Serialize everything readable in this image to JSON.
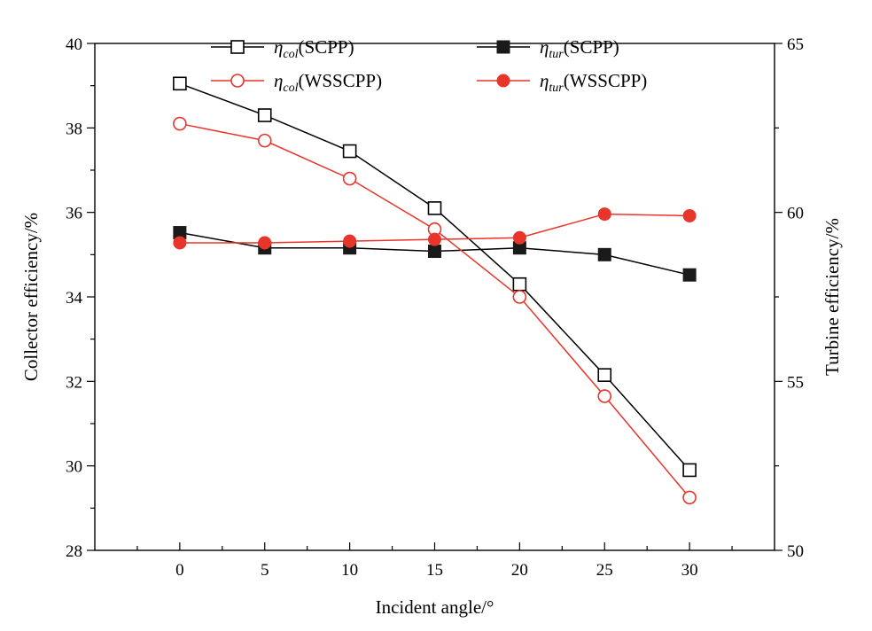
{
  "chart_data": {
    "type": "line",
    "x": [
      0,
      5,
      10,
      15,
      20,
      25,
      30
    ],
    "xlabel": "Incident angle/°",
    "ylabel_left": "Collector efficiency/%",
    "ylabel_right": "Turbine efficiency/%",
    "xlim": [
      -5,
      35
    ],
    "ylim_left": [
      28,
      40
    ],
    "ylim_right": [
      50,
      65
    ],
    "x_ticks": [
      "0",
      "5",
      "10",
      "15",
      "20",
      "25",
      "30"
    ],
    "y_ticks_left": [
      "28",
      "30",
      "32",
      "34",
      "36",
      "38",
      "40"
    ],
    "y_ticks_right": [
      "50",
      "55",
      "60",
      "65"
    ],
    "series": [
      {
        "name": "η_col(SCPP)",
        "eta": "η",
        "sub": "col",
        "suffix": "(SCPP)",
        "axis": "left",
        "color": "#000000",
        "marker": "square-open",
        "values": [
          39.05,
          38.3,
          37.45,
          36.1,
          34.3,
          32.15,
          29.9
        ]
      },
      {
        "name": "η_tur(SCPP)",
        "eta": "η",
        "sub": "tur",
        "suffix": "(SCPP)",
        "axis": "right",
        "color": "#000000",
        "marker": "square-filled",
        "values": [
          59.4,
          58.95,
          58.95,
          58.85,
          58.95,
          58.75,
          58.15
        ]
      },
      {
        "name": "η_col(WSSCPP)",
        "eta": "η",
        "sub": "col",
        "suffix": "(WSSCPP)",
        "axis": "left",
        "color": "#e8352a",
        "marker": "circle-open",
        "values": [
          38.1,
          37.7,
          36.8,
          35.6,
          34.0,
          31.65,
          29.25
        ]
      },
      {
        "name": "η_tur(WSSCPP)",
        "eta": "η",
        "sub": "tur",
        "suffix": "(WSSCPP)",
        "axis": "right",
        "color": "#e8352a",
        "marker": "circle-filled",
        "values": [
          59.1,
          59.1,
          59.15,
          59.2,
          59.25,
          59.95,
          59.9
        ]
      }
    ],
    "legend_position": "top"
  }
}
